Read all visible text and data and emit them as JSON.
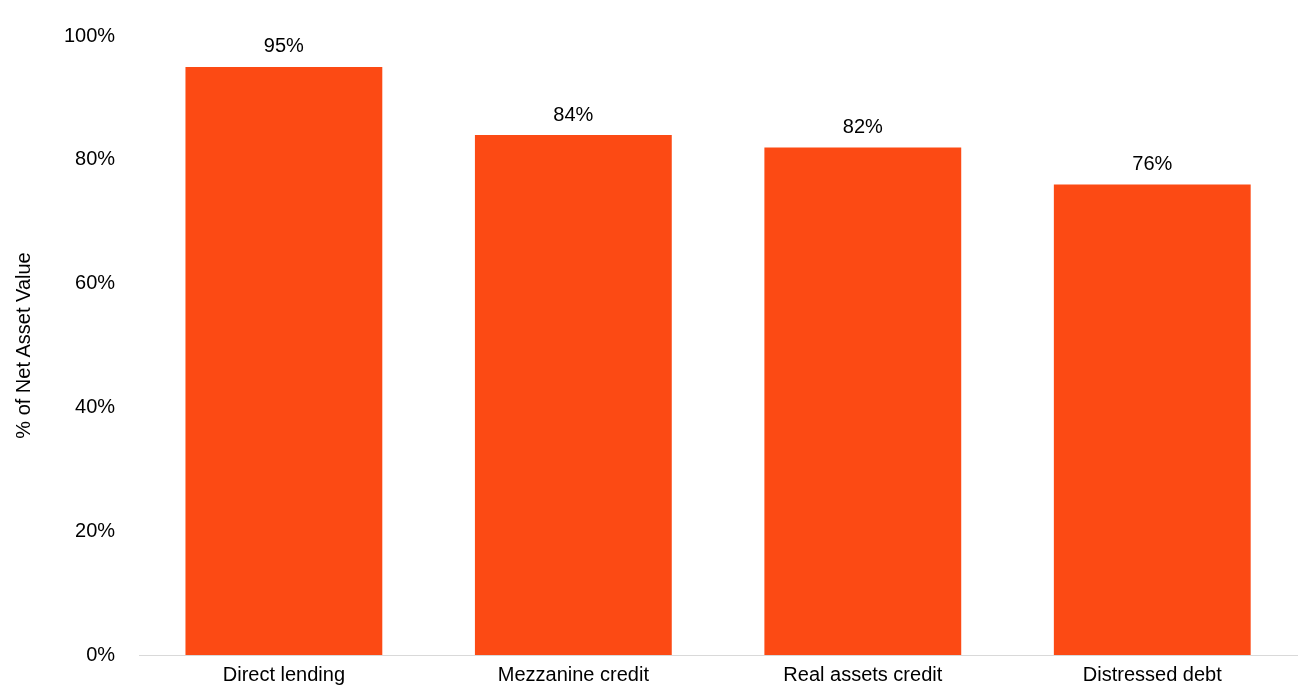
{
  "chart_data": {
    "type": "bar",
    "ylabel": "% of Net Asset Value",
    "categories": [
      "Direct lending",
      "Mezzanine credit",
      "Real assets credit",
      "Distressed debt"
    ],
    "values": [
      95,
      84,
      82,
      76
    ],
    "color": "#fc4a14",
    "value_labels": [
      "95%",
      "84%",
      "82%",
      "76%"
    ],
    "ylim": [
      0,
      100
    ],
    "yticks": [
      {
        "value": 0,
        "label": "0%"
      },
      {
        "value": 20,
        "label": "20%"
      },
      {
        "value": 40,
        "label": "40%"
      },
      {
        "value": 60,
        "label": "60%"
      },
      {
        "value": 80,
        "label": "80%"
      },
      {
        "value": 100,
        "label": "100%"
      }
    ],
    "grid": false,
    "legend": false
  }
}
